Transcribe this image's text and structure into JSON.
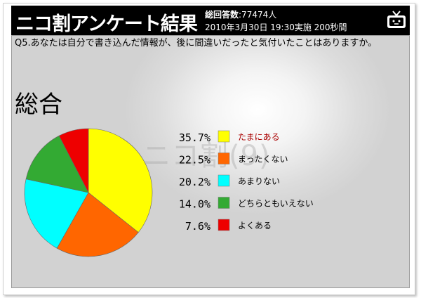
{
  "header": {
    "title": "ニコ割アンケート結果",
    "respondents_label": "総回答数",
    "respondents_value": ":77474人",
    "survey_info": "2010年3月30日 19:30実施 200秒間",
    "icon": "niconico-tv-icon"
  },
  "question": "Q5.あなたは自分で書き込んだ情報が、後に間違いだったと気付いたことはありますか。",
  "watermark": "ニコ割(9)",
  "chart_data": {
    "type": "pie",
    "title": "総合",
    "start_angle_deg": 0,
    "direction": "clockwise",
    "slices": [
      {
        "label": "たまにある",
        "value": 35.7,
        "display": "35.7%",
        "color": "#ffff00",
        "label_color": "#aa0000"
      },
      {
        "label": "まったくない",
        "value": 22.5,
        "display": "22.5%",
        "color": "#ff6600",
        "label_color": "#000000"
      },
      {
        "label": "あまりない",
        "value": 20.2,
        "display": "20.2%",
        "color": "#00ffff",
        "label_color": "#000000"
      },
      {
        "label": "どちらともいえない",
        "value": 14.0,
        "display": "14.0%",
        "color": "#33aa33",
        "label_color": "#000000"
      },
      {
        "label": "よくある",
        "value": 7.6,
        "display": "7.6%",
        "color": "#ee0000",
        "label_color": "#000000"
      }
    ],
    "legend_position": "right"
  }
}
